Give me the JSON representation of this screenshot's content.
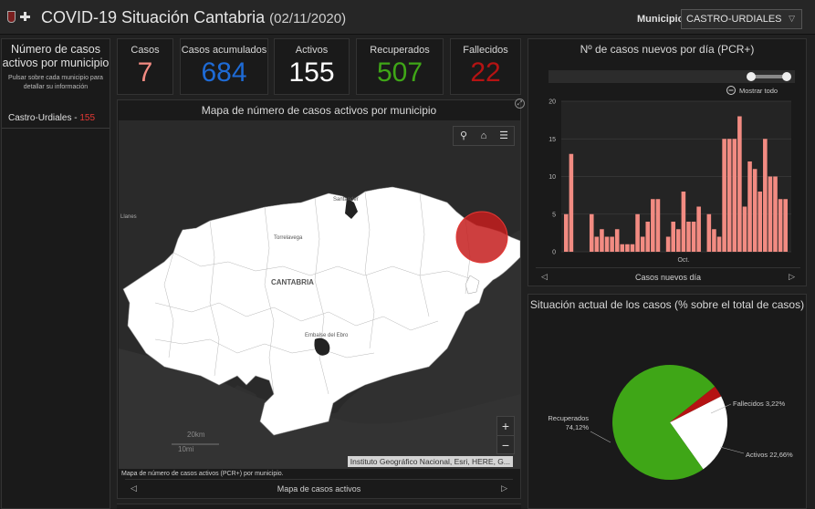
{
  "header": {
    "title": "COVID-19 Situación Cantabria",
    "date": "(02/11/2020)",
    "municipio_label": "Municipio",
    "municipio_value": "CASTRO-URDIALES"
  },
  "left_panel": {
    "title": "Número de casos activos por municipio",
    "subtitle": "Pulsar sobre cada municipio para detallar su información",
    "item_name": "Castro-Urdiales - ",
    "item_value": "155"
  },
  "stats": [
    {
      "label": "Casos",
      "value": "7",
      "color": "#f28b82"
    },
    {
      "label": "Casos acumulados",
      "value": "684",
      "color": "#1e6bd6"
    },
    {
      "label": "Activos",
      "value": "155",
      "color": "#ffffff"
    },
    {
      "label": "Recuperados",
      "value": "507",
      "color": "#3fa617"
    },
    {
      "label": "Fallecidos",
      "value": "22",
      "color": "#b51313"
    }
  ],
  "map": {
    "title": "Mapa de número de casos activos por municipio",
    "labels": {
      "santander": "Santander",
      "torrelavega": "Torrelavega",
      "cantabria": "CANTABRIA",
      "embalse": "Embalse del Ebro",
      "llanes": "Llanes"
    },
    "scale_km": "20km",
    "scale_mi": "10mi",
    "attribution": "Instituto Geográfico Nacional, Esri, HERE, G...",
    "caption": "Mapa de número de casos activos (PCR+) por municipio.",
    "nav_label": "Mapa de casos activos",
    "zoom_in": "+",
    "zoom_out": "−"
  },
  "bar_panel": {
    "title": "Nº de casos nuevos por día (PCR+)",
    "show_all": "Mostrar todo",
    "nav_label": "Casos nuevos día"
  },
  "chart_data": [
    {
      "type": "bar",
      "title": "Nº de casos nuevos por día (PCR+)",
      "xlabel": "",
      "ylabel": "",
      "ylim": [
        0,
        20
      ],
      "yticks": [
        "0",
        "5",
        "10",
        "15",
        "20"
      ],
      "x_tick_label": "Oct.",
      "x_tick_index": 23,
      "color": "#f28b82",
      "values": [
        5,
        13,
        0,
        0,
        0,
        5,
        2,
        3,
        2,
        2,
        3,
        1,
        1,
        1,
        5,
        2,
        4,
        7,
        7,
        0,
        2,
        4,
        3,
        8,
        4,
        4,
        6,
        0,
        5,
        3,
        2,
        15,
        15,
        15,
        18,
        6,
        12,
        11,
        8,
        15,
        10,
        10,
        7,
        7
      ]
    },
    {
      "type": "pie",
      "title": "Situación actual de los casos (% sobre el total de casos)",
      "slices": [
        {
          "label": "Recuperados",
          "pct": "74,12%",
          "value": 74.12,
          "color": "#3fa617"
        },
        {
          "label": "Fallecidos",
          "pct": "3,22%",
          "value": 3.22,
          "color": "#b51313"
        },
        {
          "label": "Activos",
          "pct": "22,66%",
          "value": 22.66,
          "color": "#ffffff"
        }
      ]
    }
  ]
}
